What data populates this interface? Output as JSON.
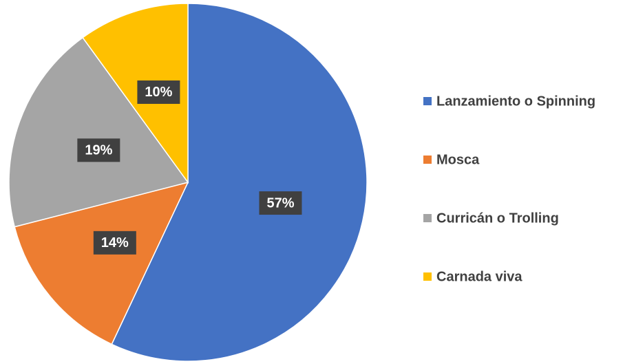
{
  "chart_data": {
    "type": "pie",
    "categories": [
      "Lanzamiento o Spinning",
      "Mosca",
      "Curricán o Trolling",
      "Carnada viva"
    ],
    "values": [
      57,
      14,
      19,
      10
    ],
    "value_labels": [
      "57%",
      "14%",
      "19%",
      "10%"
    ],
    "colors": [
      "#4472c4",
      "#ed7d31",
      "#a5a5a5",
      "#ffc000"
    ],
    "legend": "right"
  }
}
